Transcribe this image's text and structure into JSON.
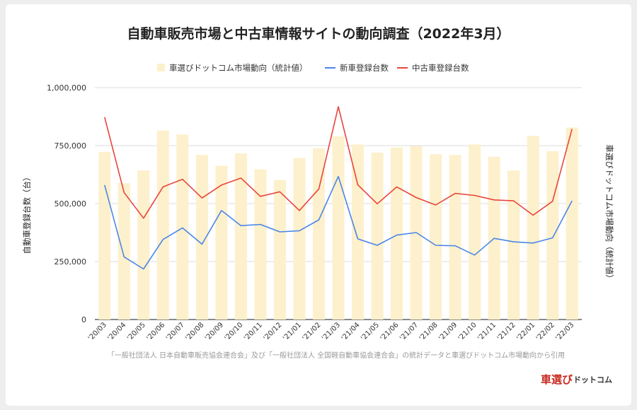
{
  "chart_data": {
    "type": "bar+line",
    "title": "自動車販売市場と中古車情報サイトの動向調査（2022年3月）",
    "categories": [
      "'20/03",
      "'20/04",
      "'20/05",
      "'20/06",
      "'20/07",
      "'20/08",
      "'20/09",
      "'20/10",
      "'20/11",
      "'20/12",
      "'21/01",
      "'21/02",
      "'21/03",
      "'21/04",
      "'21/05",
      "'21/06",
      "'21/07",
      "'21/08",
      "'21/09",
      "'21/10",
      "'21/11",
      "'21/12",
      "'22/01",
      "'22/02",
      "'22/03"
    ],
    "bar_series": {
      "name": "車選びドットコム市場動向（統計値）",
      "color": "#fdf0cc",
      "values": [
        722000,
        588000,
        643000,
        815000,
        798000,
        710000,
        663000,
        717000,
        648000,
        602000,
        697000,
        738000,
        790000,
        755000,
        720000,
        742000,
        748000,
        713000,
        710000,
        755000,
        702000,
        643000,
        792000,
        726000,
        828000
      ]
    },
    "line_series": [
      {
        "name": "新車登録台数",
        "color": "#4a86e8",
        "values": [
          580000,
          270000,
          218000,
          345000,
          395000,
          325000,
          470000,
          405000,
          410000,
          378000,
          383000,
          430000,
          617000,
          348000,
          320000,
          364000,
          375000,
          320000,
          318000,
          278000,
          350000,
          335000,
          330000,
          352000,
          512000
        ]
      },
      {
        "name": "中古車登録台数",
        "color": "#e8453c",
        "values": [
          873000,
          548000,
          437000,
          572000,
          605000,
          524000,
          580000,
          610000,
          531000,
          551000,
          470000,
          563000,
          918000,
          581000,
          499000,
          572000,
          526000,
          494000,
          544000,
          535000,
          516000,
          512000,
          450000,
          510000,
          822000
        ]
      }
    ],
    "y_ticks": [
      "1,000,000",
      "750,000",
      "500,000",
      "250,000",
      "0"
    ],
    "ylim": [
      0,
      1000000
    ],
    "ylabel_left": "自動車登録台数（台）",
    "ylabel_right": "車選びドットコム市場動向（統計値）",
    "grid": true,
    "legend_position": "top"
  },
  "source_note": "「一般社団法人 日本自動車販売協会連合会」及び「一般社団法人 全国軽自動車協会連合会」の統計データと車選びドットコム市場動向から引用",
  "logo": {
    "main": "車選び",
    "sub": "ドットコム"
  }
}
